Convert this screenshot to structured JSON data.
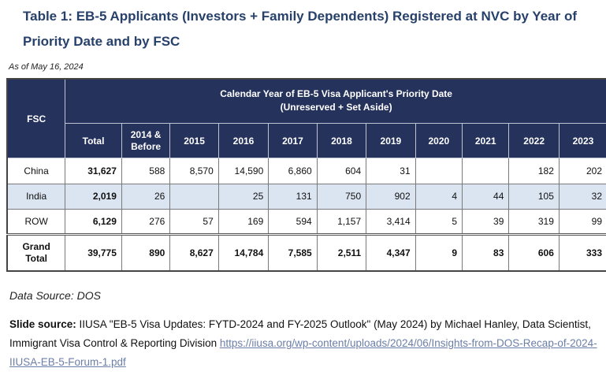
{
  "title": "Table 1: EB-5 Applicants (Investors + Family Dependents) Registered at NVC by Year of Priority Date and by FSC",
  "as_of": "As of May 16, 2024",
  "table": {
    "fsc_header": "FSC",
    "super_header_line1": "Calendar Year of EB-5 Visa Applicant's Priority Date",
    "super_header_line2": "(Unreserved + Set Aside)",
    "columns": [
      "Total",
      "2014 & Before",
      "2015",
      "2016",
      "2017",
      "2018",
      "2019",
      "2020",
      "2021",
      "2022",
      "2023"
    ],
    "rows": [
      {
        "fsc": "China",
        "values": [
          "31,627",
          "588",
          "8,570",
          "14,590",
          "6,860",
          "604",
          "31",
          "",
          "",
          "182",
          "202"
        ]
      },
      {
        "fsc": "India",
        "values": [
          "2,019",
          "26",
          "",
          "25",
          "131",
          "750",
          "902",
          "4",
          "44",
          "105",
          "32"
        ]
      },
      {
        "fsc": "ROW",
        "values": [
          "6,129",
          "276",
          "57",
          "169",
          "594",
          "1,157",
          "3,414",
          "5",
          "39",
          "319",
          "99"
        ]
      }
    ],
    "grand_total": {
      "fsc": "Grand Total",
      "values": [
        "39,775",
        "890",
        "8,627",
        "14,784",
        "7,585",
        "2,511",
        "4,347",
        "9",
        "83",
        "606",
        "333"
      ]
    }
  },
  "data_source": "Data Source: DOS",
  "slide_source": {
    "label": "Slide source:",
    "text": " IIUSA \"EB-5 Visa Updates: FYTD-2024 and FY-2025 Outlook\" (May 2024) by Michael Hanley, Data Scientist, Immigrant Visa Control & Reporting Division ",
    "link": "https://iiusa.org/wp-content/uploads/2024/06/Insights-from-DOS-Recap-of-2024-IIUSA-EB-5-Forum-1.pdf"
  },
  "colors": {
    "title": "#27416b",
    "header_bg": "#25325c",
    "alt_row_bg": "#dbe4f1",
    "link": "#6b7ea6"
  }
}
